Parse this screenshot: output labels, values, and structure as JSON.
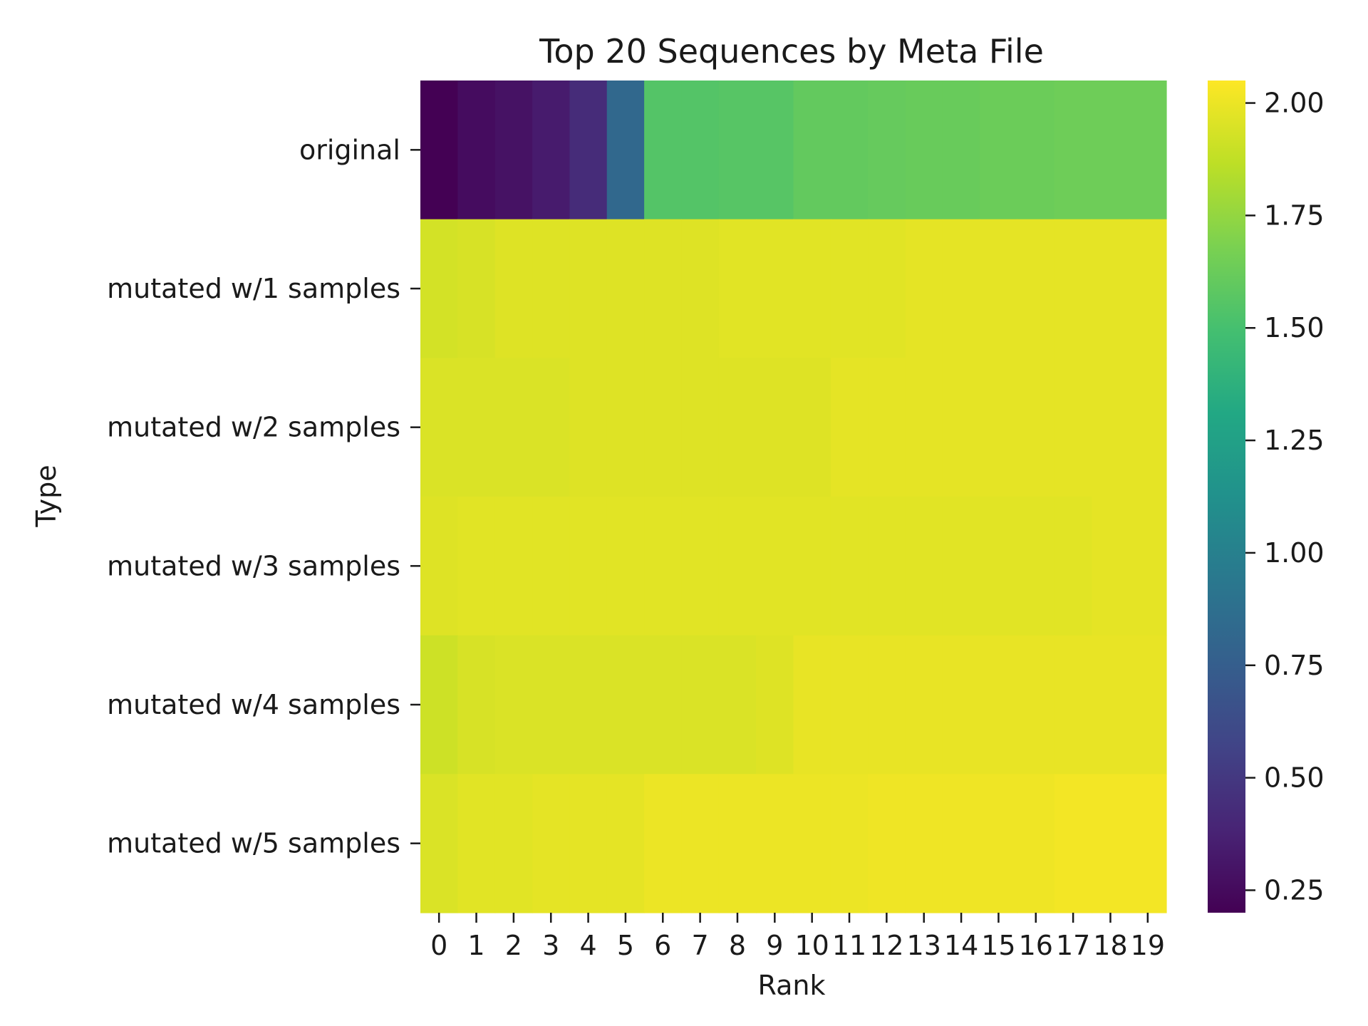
{
  "chart_data": {
    "type": "heatmap",
    "title": "Top 20 Sequences by Meta File",
    "xlabel": "Rank",
    "ylabel": "Type",
    "x": [
      "0",
      "1",
      "2",
      "3",
      "4",
      "5",
      "6",
      "7",
      "8",
      "9",
      "10",
      "11",
      "12",
      "13",
      "14",
      "15",
      "16",
      "17",
      "18",
      "19"
    ],
    "y": [
      "original",
      "mutated w/1 samples",
      "mutated w/2 samples",
      "mutated w/3 samples",
      "mutated w/4 samples",
      "mutated w/5 samples"
    ],
    "values": [
      [
        0.2,
        0.26,
        0.29,
        0.34,
        0.43,
        0.82,
        1.55,
        1.55,
        1.56,
        1.56,
        1.6,
        1.6,
        1.61,
        1.62,
        1.62,
        1.63,
        1.63,
        1.64,
        1.64,
        1.64
      ],
      [
        1.93,
        1.94,
        1.96,
        1.96,
        1.96,
        1.96,
        1.96,
        1.96,
        1.97,
        1.97,
        1.97,
        1.97,
        1.97,
        1.98,
        1.98,
        1.98,
        1.98,
        1.98,
        1.98,
        1.98
      ],
      [
        1.95,
        1.95,
        1.95,
        1.95,
        1.96,
        1.96,
        1.96,
        1.96,
        1.96,
        1.96,
        1.96,
        1.98,
        1.98,
        1.98,
        1.98,
        1.98,
        1.98,
        1.98,
        1.98,
        1.98
      ],
      [
        1.96,
        1.97,
        1.97,
        1.97,
        1.97,
        1.97,
        1.97,
        1.97,
        1.97,
        1.97,
        1.97,
        1.97,
        1.97,
        1.97,
        1.97,
        1.97,
        1.97,
        1.97,
        1.98,
        1.98
      ],
      [
        1.91,
        1.94,
        1.95,
        1.95,
        1.95,
        1.95,
        1.95,
        1.95,
        1.95,
        1.96,
        1.99,
        1.99,
        1.99,
        1.99,
        1.99,
        1.99,
        1.99,
        1.99,
        1.99,
        1.99
      ],
      [
        1.95,
        1.97,
        1.97,
        1.98,
        1.98,
        1.98,
        2.0,
        2.0,
        2.0,
        2.0,
        2.0,
        2.0,
        2.01,
        2.01,
        2.01,
        2.01,
        2.01,
        2.02,
        2.02,
        2.02
      ]
    ],
    "colormap": "viridis",
    "vmin": 0.2,
    "vmax": 2.05,
    "colorbar_ticks": [
      "0.25",
      "0.50",
      "0.75",
      "1.00",
      "1.25",
      "1.50",
      "1.75",
      "2.00"
    ],
    "legend": "colorbar-right",
    "grid": false
  }
}
